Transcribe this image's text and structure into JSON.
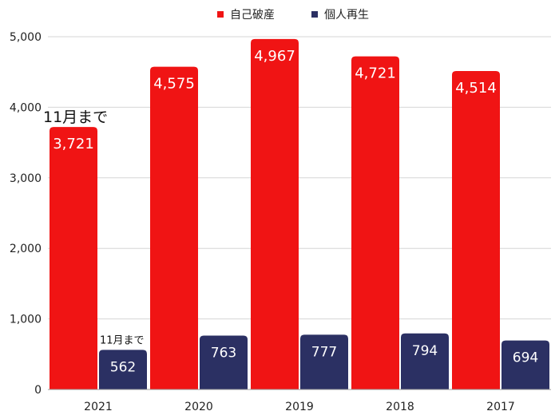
{
  "chart_data": {
    "type": "bar",
    "title": "",
    "xlabel": "",
    "ylabel": "",
    "ylim": [
      0,
      5000
    ],
    "yticks": [
      0,
      1000,
      2000,
      3000,
      4000,
      5000
    ],
    "ytick_labels": [
      "0",
      "1,000",
      "2,000",
      "3,000",
      "4,000",
      "5,000"
    ],
    "grid": true,
    "legend_position": "top-center",
    "categories": [
      "2021",
      "2020",
      "2019",
      "2018",
      "2017"
    ],
    "series": [
      {
        "name": "自己破産",
        "color": "#f01414",
        "values": [
          3721,
          4575,
          4967,
          4721,
          4514
        ],
        "labels": [
          "3,721",
          "4,575",
          "4,967",
          "4,721",
          "4,514"
        ]
      },
      {
        "name": "個人再生",
        "color": "#2b3063",
        "values": [
          562,
          763,
          777,
          794,
          694
        ],
        "labels": [
          "562",
          "763",
          "777",
          "794",
          "694"
        ]
      }
    ],
    "annotations": [
      {
        "text": "11月まで",
        "series": 0,
        "category": "2021"
      },
      {
        "text": "11月まで",
        "series": 1,
        "category": "2021"
      }
    ]
  }
}
